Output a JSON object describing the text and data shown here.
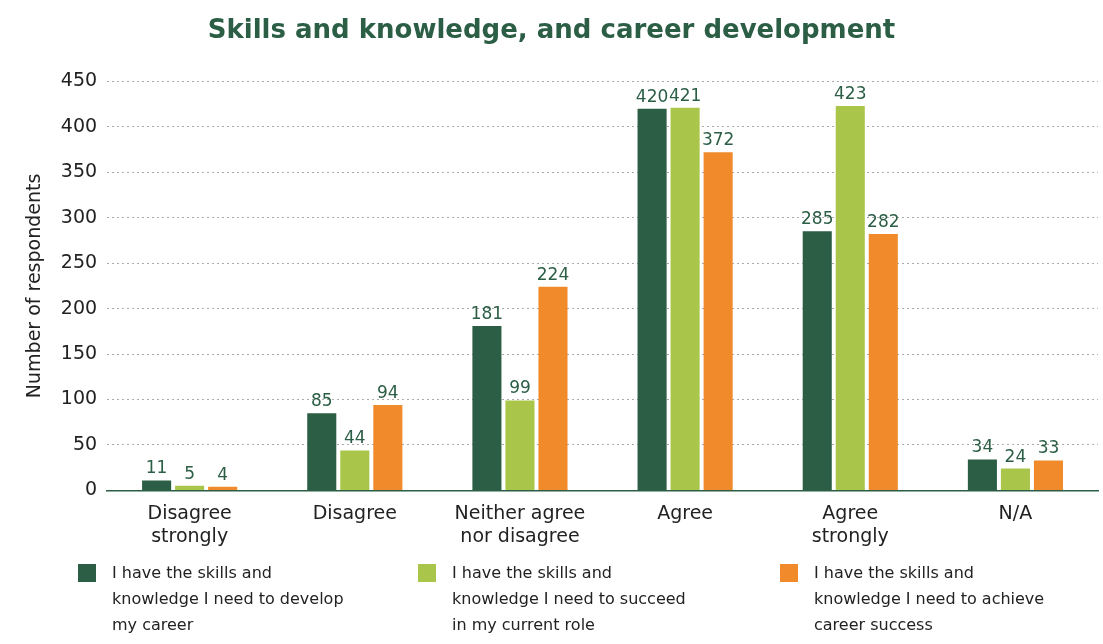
{
  "chart_data": {
    "type": "bar",
    "title": "Skills and knowledge, and career development",
    "ylabel": "Number of respondents",
    "categories": [
      "Disagree strongly",
      "Disagree",
      "Neither agree nor disagree",
      "Agree",
      "Agree strongly",
      "N/A"
    ],
    "series": [
      {
        "name": "I have the skills and knowledge I need to develop my career",
        "color": "#2b5e45",
        "values": [
          11,
          85,
          181,
          420,
          285,
          34
        ]
      },
      {
        "name": "I have the skills and knowledge I need to succeed in my current role",
        "color": "#a9c64a",
        "values": [
          5,
          44,
          99,
          421,
          423,
          24
        ]
      },
      {
        "name": "I have the skills and knowledge I need to achieve career success",
        "color": "#f08a2b",
        "values": [
          4,
          94,
          224,
          372,
          282,
          33
        ]
      }
    ],
    "ylim": [
      0,
      450
    ],
    "yticks": [
      0,
      50,
      100,
      150,
      200,
      250,
      300,
      350,
      400,
      450
    ],
    "grid": "y",
    "legend": "bottom",
    "data_labels": true
  }
}
